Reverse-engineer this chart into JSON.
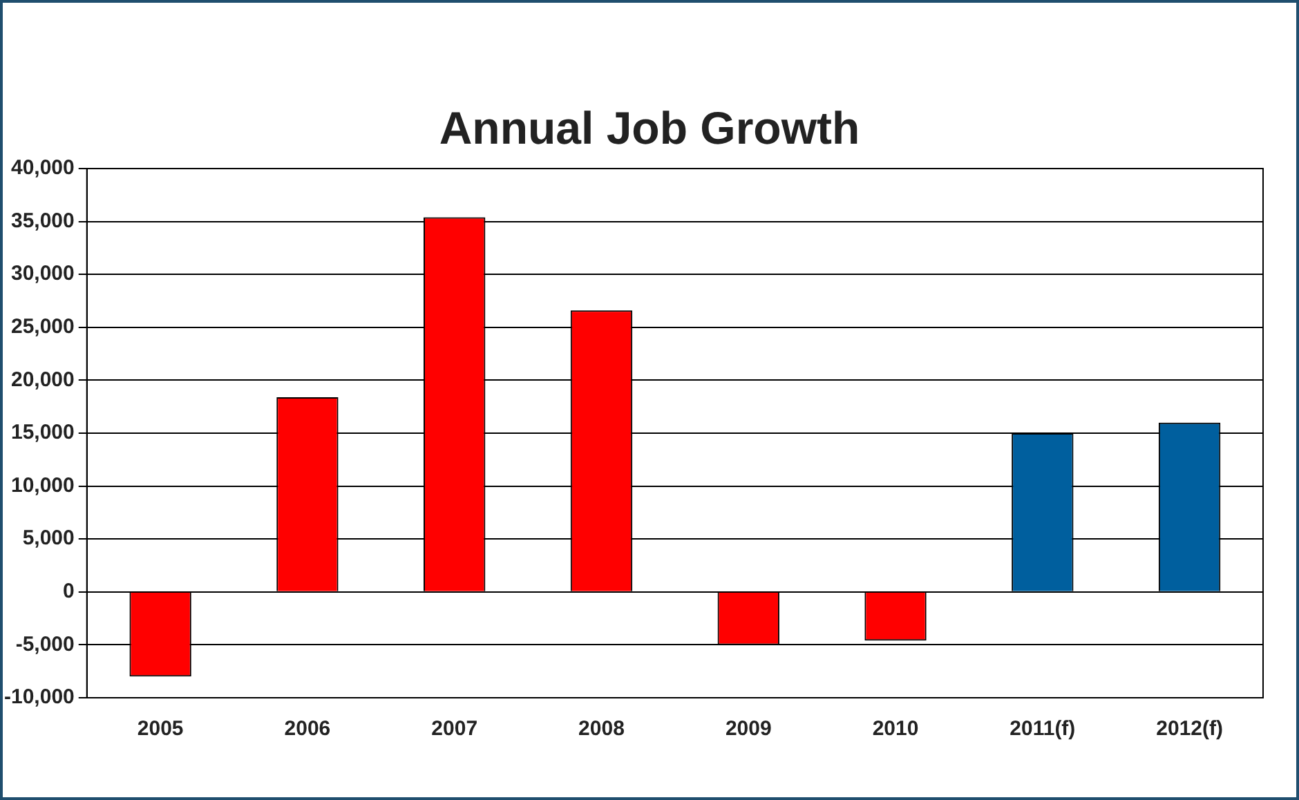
{
  "chart_data": {
    "type": "bar",
    "title": "Annual Job Growth",
    "categories": [
      "2005",
      "2006",
      "2007",
      "2008",
      "2009",
      "2010",
      "2011(f)",
      "2012(f)"
    ],
    "values": [
      -8000,
      18400,
      35400,
      26600,
      -5000,
      -4600,
      15000,
      16000
    ],
    "colors": [
      "#ff0000",
      "#ff0000",
      "#ff0000",
      "#ff0000",
      "#ff0000",
      "#ff0000",
      "#005f9e",
      "#005f9e"
    ],
    "ylim": [
      -10000,
      40000
    ],
    "yticks": [
      {
        "value": -10000,
        "label": "-10,000"
      },
      {
        "value": -5000,
        "label": "-5,000"
      },
      0,
      {
        "value": 5000,
        "label": "5,000"
      },
      {
        "value": 10000,
        "label": "10,000"
      },
      {
        "value": 15000,
        "label": "15,000"
      },
      {
        "value": 20000,
        "label": "20,000"
      },
      {
        "value": 25000,
        "label": "25,000"
      },
      {
        "value": 30000,
        "label": "30,000"
      },
      {
        "value": 35000,
        "label": "35,000"
      },
      {
        "value": 40000,
        "label": "40,000"
      }
    ],
    "grid": "y"
  }
}
